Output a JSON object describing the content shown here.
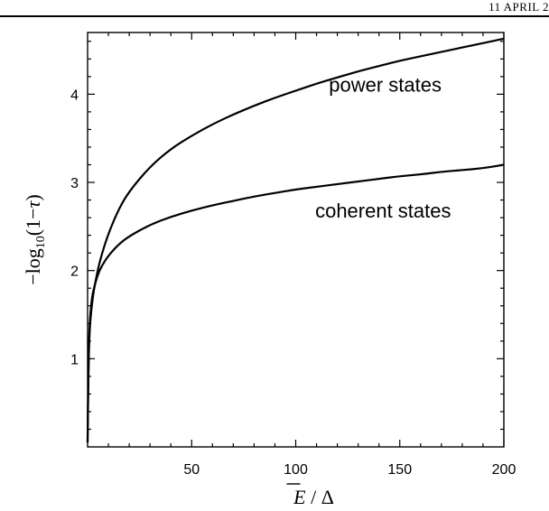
{
  "header": {
    "text": "11 APRIL 2"
  },
  "chart_data": {
    "type": "line",
    "title": "",
    "xlabel": "E / Δ",
    "xlabel_overline": "E",
    "ylabel": "−log10(1−τ)",
    "xlim": [
      0,
      200
    ],
    "ylim": [
      0,
      4.7
    ],
    "xticks": [
      50,
      100,
      150,
      200
    ],
    "yticks": [
      1,
      2,
      3,
      4
    ],
    "grid": false,
    "legend": "none",
    "series": [
      {
        "label": "power states",
        "x": [
          0,
          0.4,
          1,
          2,
          3,
          5,
          7,
          10,
          15,
          20,
          30,
          40,
          50,
          60,
          70,
          80,
          90,
          100,
          110,
          120,
          130,
          140,
          150,
          160,
          170,
          180,
          190,
          200
        ],
        "y": [
          0.05,
          0.9,
          1.35,
          1.6,
          1.78,
          2.02,
          2.2,
          2.42,
          2.7,
          2.9,
          3.18,
          3.38,
          3.53,
          3.66,
          3.77,
          3.87,
          3.96,
          4.04,
          4.12,
          4.19,
          4.26,
          4.32,
          4.38,
          4.43,
          4.48,
          4.53,
          4.58,
          4.63
        ]
      },
      {
        "label": "coherent states",
        "x": [
          0,
          0.4,
          1,
          2,
          3,
          5,
          7,
          10,
          15,
          20,
          30,
          40,
          50,
          60,
          70,
          80,
          90,
          100,
          110,
          120,
          130,
          140,
          150,
          160,
          170,
          180,
          190,
          200
        ],
        "y": [
          0.05,
          0.95,
          1.42,
          1.68,
          1.8,
          1.96,
          2.06,
          2.17,
          2.3,
          2.39,
          2.52,
          2.61,
          2.68,
          2.74,
          2.79,
          2.84,
          2.88,
          2.92,
          2.95,
          2.98,
          3.01,
          3.04,
          3.07,
          3.09,
          3.12,
          3.14,
          3.16,
          3.2
        ]
      }
    ],
    "annotations": [
      {
        "text": "power states",
        "x": 143,
        "y": 4.03
      },
      {
        "text": "coherent states",
        "x": 142,
        "y": 2.6
      }
    ]
  }
}
